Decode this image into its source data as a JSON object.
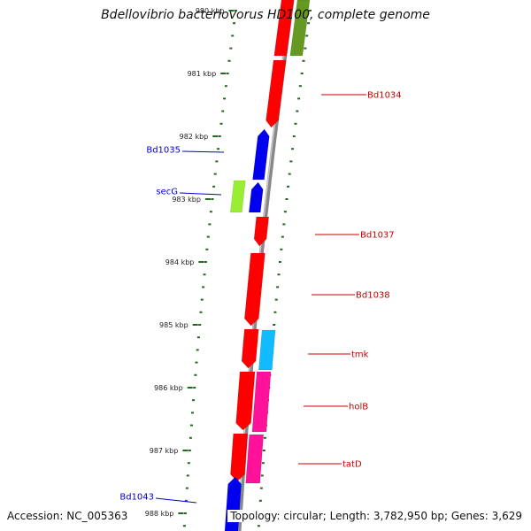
{
  "title": "Bdellovibrio bacteriovorus HD100, complete genome",
  "footer": {
    "accession": "Accession: NC_005363",
    "summary": "Topology: circular; Length: 3,782,950 bp; Genes: 3,629"
  },
  "ruler": {
    "major_ticks": [
      {
        "label": "980 kbp"
      },
      {
        "label": "981 kbp"
      },
      {
        "label": "982 kbp"
      },
      {
        "label": "983 kbp"
      },
      {
        "label": "984 kbp"
      },
      {
        "label": "985 kbp"
      },
      {
        "label": "986 kbp"
      },
      {
        "label": "987 kbp"
      },
      {
        "label": "988 kbp"
      }
    ]
  },
  "colors": {
    "red": "#ff0000",
    "blue": "#0000ee",
    "lime": "#99ee33",
    "olive": "#669922",
    "cyan": "#11bbff",
    "pink": "#ff1199",
    "tick_green": "#226622",
    "label_red": "#cc0000",
    "label_blue": "#0000cc",
    "backbone": "#888888"
  },
  "genes": [
    {
      "name": "Bd1034",
      "strand": "plus"
    },
    {
      "name": "Bd1035",
      "strand": "minus"
    },
    {
      "name": "secG",
      "strand": "minus"
    },
    {
      "name": "Bd1037",
      "strand": "plus"
    },
    {
      "name": "Bd1038",
      "strand": "plus"
    },
    {
      "name": "tmk",
      "strand": "plus"
    },
    {
      "name": "holB",
      "strand": "plus"
    },
    {
      "name": "tatD",
      "strand": "plus"
    },
    {
      "name": "Bd1043",
      "strand": "minus"
    }
  ]
}
